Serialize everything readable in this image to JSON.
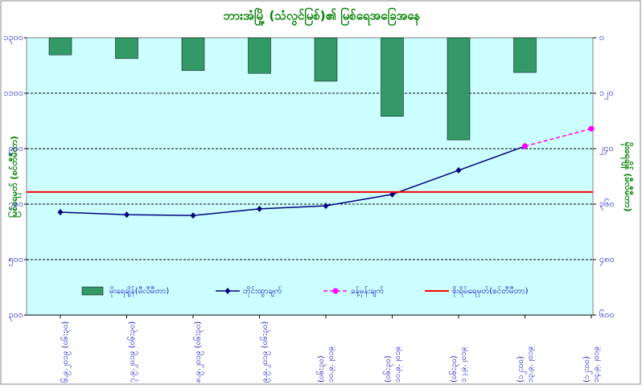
{
  "chart_data": {
    "type": "bar-line",
    "title": "ဘားအံမြို့ (သံလွင်မြစ်)၏ မြစ်ရေအခြေအနေ",
    "y_label": "မြစ်ရေမှတ် (စင်တီမီတာ)",
    "y2_label": "မိုးရေချိန် (မီလီမီတာ)",
    "categories": [
      "၆.၉.၂၀၁၉ (၀၆:၃၀)",
      "၇.၉.၂၀၁၉ (၀၆:၃၀)",
      "၈.၉.၂၀၁၉ (၀၆:၃၀)",
      "၉.၉.၂၀၁၉ (၀၆:၃၀)",
      "၁၀.၉.၂၀၁၉ (၀၆:၃၀)",
      "၁၁.၉.၂၀၁၉ (၀၆:၃၀)",
      "၁၂.၉.၂၀၁၉ (၀၆:၃၀)",
      "၁၃.၉.၂၀၁၉ (၁၂:၀၀)",
      "၁၄.၉.၂၀၁၉ (၁၂:၀၀)"
    ],
    "ylim": [
      300,
      1300
    ],
    "yticks": [
      {
        "value": 300,
        "label": "၃၀၀"
      },
      {
        "value": 500,
        "label": "၅၀၀"
      },
      {
        "value": 700,
        "label": "၇၀၀"
      },
      {
        "value": 900,
        "label": "၉၀၀"
      },
      {
        "value": 1100,
        "label": "၁၁၀၀"
      },
      {
        "value": 1300,
        "label": "၁၃၀၀"
      }
    ],
    "y2lim": [
      0,
      600
    ],
    "y2_inverted": true,
    "y2ticks": [
      {
        "value": 0,
        "label": "၀"
      },
      {
        "value": 120,
        "label": "၁၂၀"
      },
      {
        "value": 240,
        "label": "၂၄၀"
      },
      {
        "value": 360,
        "label": "၃၆၀"
      },
      {
        "value": 480,
        "label": "၄၈၀"
      },
      {
        "value": 600,
        "label": "၆၀၀"
      }
    ],
    "grid": true,
    "series": [
      {
        "name": "မိုးရေချိန်(မီလီမီတာ)",
        "type": "bar",
        "axis": "y2",
        "color": "#339966",
        "values": [
          37,
          45,
          71,
          77,
          94,
          170,
          221,
          75,
          null
        ]
      },
      {
        "name": "တိုင်းထွာချက်",
        "type": "line",
        "color": "#000080",
        "values": [
          671,
          662,
          659,
          683,
          694,
          735,
          822,
          909,
          null
        ]
      },
      {
        "name": "ခန့်မှန်းချက်",
        "type": "line",
        "dashed": true,
        "color": "#ff00ff",
        "values": [
          null,
          null,
          null,
          null,
          null,
          null,
          null,
          909,
          972
        ]
      }
    ],
    "reference_line": {
      "name": "စိုးရိမ်ရေမှတ်(စင်တီမီတာ)",
      "color": "#ff0000",
      "value": 744
    }
  }
}
